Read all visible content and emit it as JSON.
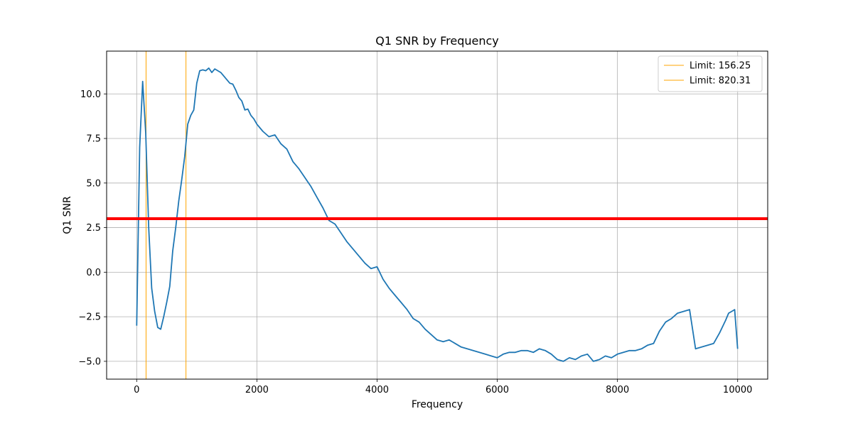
{
  "chart_data": {
    "type": "line",
    "title": "Q1 SNR by Frequency",
    "xlabel": "Frequency",
    "ylabel": "Q1 SNR",
    "xlim": [
      -500,
      10500
    ],
    "ylim": [
      -6.0,
      12.4
    ],
    "xticks": [
      0,
      2000,
      4000,
      6000,
      8000,
      10000
    ],
    "xtick_labels": [
      "0",
      "2000",
      "4000",
      "6000",
      "8000",
      "10000"
    ],
    "yticks": [
      -5.0,
      -2.5,
      0.0,
      2.5,
      5.0,
      7.5,
      10.0
    ],
    "ytick_labels": [
      "−5.0",
      "−2.5",
      "0.0",
      "2.5",
      "5.0",
      "7.5",
      "10.0"
    ],
    "grid": true,
    "legend_position": "top-right",
    "threshold": {
      "y": 3.0,
      "color": "#ff0000"
    },
    "vlines": [
      {
        "x": 156.25,
        "label": "Limit: 156.25",
        "color": "#ffa500"
      },
      {
        "x": 820.31,
        "label": "Limit: 820.31",
        "color": "#ffa500"
      }
    ],
    "series": [
      {
        "color": "#1f77b4",
        "x": [
          0,
          50,
          100,
          150,
          200,
          250,
          300,
          350,
          400,
          450,
          500,
          550,
          600,
          650,
          700,
          750,
          800,
          850,
          900,
          950,
          1000,
          1050,
          1100,
          1150,
          1200,
          1250,
          1300,
          1350,
          1400,
          1450,
          1500,
          1550,
          1600,
          1650,
          1700,
          1750,
          1800,
          1850,
          1900,
          1950,
          2000,
          2100,
          2200,
          2300,
          2400,
          2500,
          2600,
          2700,
          2800,
          2900,
          3000,
          3100,
          3200,
          3300,
          3400,
          3500,
          3600,
          3700,
          3800,
          3900,
          4000,
          4100,
          4200,
          4300,
          4400,
          4500,
          4600,
          4700,
          4800,
          4900,
          5000,
          5100,
          5200,
          5300,
          5400,
          5500,
          5600,
          5700,
          5800,
          5900,
          6000,
          6100,
          6200,
          6300,
          6400,
          6500,
          6600,
          6700,
          6800,
          6900,
          7000,
          7100,
          7200,
          7300,
          7400,
          7500,
          7600,
          7700,
          7800,
          7900,
          8000,
          8100,
          8200,
          8300,
          8400,
          8500,
          8600,
          8700,
          8800,
          8900,
          9000,
          9100,
          9200,
          9300,
          9400,
          9500,
          9600,
          9700,
          9800,
          9850,
          9900,
          9950,
          10000
        ],
        "y": [
          -3.0,
          7.0,
          10.7,
          7.8,
          2.5,
          -0.9,
          -2.2,
          -3.1,
          -3.2,
          -2.5,
          -1.7,
          -0.8,
          1.2,
          2.5,
          4.0,
          5.2,
          6.5,
          8.3,
          8.8,
          9.1,
          10.6,
          11.3,
          11.35,
          11.3,
          11.45,
          11.2,
          11.4,
          11.3,
          11.2,
          11.0,
          10.8,
          10.6,
          10.55,
          10.2,
          9.8,
          9.6,
          9.1,
          9.15,
          8.8,
          8.6,
          8.3,
          7.9,
          7.6,
          7.7,
          7.2,
          6.9,
          6.2,
          5.8,
          5.3,
          4.8,
          4.2,
          3.6,
          2.9,
          2.7,
          2.2,
          1.7,
          1.3,
          0.9,
          0.5,
          0.2,
          0.3,
          -0.4,
          -0.9,
          -1.3,
          -1.7,
          -2.1,
          -2.6,
          -2.8,
          -3.2,
          -3.5,
          -3.8,
          -3.9,
          -3.8,
          -4.0,
          -4.2,
          -4.3,
          -4.4,
          -4.5,
          -4.6,
          -4.7,
          -4.8,
          -4.6,
          -4.5,
          -4.5,
          -4.4,
          -4.4,
          -4.5,
          -4.3,
          -4.4,
          -4.6,
          -4.9,
          -5.0,
          -4.8,
          -4.9,
          -4.7,
          -4.6,
          -5.0,
          -4.9,
          -4.7,
          -4.8,
          -4.6,
          -4.5,
          -4.4,
          -4.4,
          -4.3,
          -4.1,
          -4.0,
          -3.3,
          -2.8,
          -2.6,
          -2.3,
          -2.2,
          -2.1,
          -4.3,
          -4.2,
          -4.1,
          -4.0,
          -3.4,
          -2.7,
          -2.3,
          -2.2,
          -2.1,
          -4.3
        ]
      }
    ]
  }
}
